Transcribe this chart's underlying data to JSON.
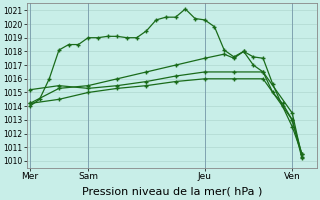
{
  "bg_color": "#c8eee8",
  "grid_color": "#b0d8d0",
  "line_color": "#1a6b1a",
  "marker_color": "#1a6b1a",
  "xlabel": "Pression niveau de la mer( hPa )",
  "xlabel_fontsize": 8,
  "ylim": [
    1009.5,
    1021.5
  ],
  "day_labels": [
    "Mer",
    "Sam",
    "Jeu",
    "Ven"
  ],
  "day_positions": [
    0,
    6,
    18,
    27
  ],
  "xlim": [
    -0.3,
    29.5
  ],
  "series1_x": [
    0,
    1,
    2,
    3,
    4,
    5,
    6,
    7,
    8,
    9,
    10,
    11,
    12,
    13,
    14,
    15,
    16,
    17,
    18,
    19,
    20,
    21,
    22,
    23,
    24,
    25,
    26,
    27,
    28
  ],
  "series1_y": [
    1014.0,
    1014.5,
    1016.0,
    1018.1,
    1018.5,
    1018.5,
    1019.0,
    1019.0,
    1019.1,
    1019.1,
    1019.0,
    1019.0,
    1019.5,
    1020.3,
    1020.5,
    1020.5,
    1021.1,
    1020.4,
    1020.3,
    1019.8,
    1018.1,
    1017.6,
    1018.0,
    1017.6,
    1017.5,
    1015.6,
    1014.0,
    1012.5,
    1010.5
  ],
  "series2_x": [
    0,
    3,
    6,
    9,
    12,
    15,
    18,
    20,
    21,
    22,
    23,
    24,
    25,
    26,
    27,
    28
  ],
  "series2_y": [
    1014.2,
    1015.3,
    1015.5,
    1016.0,
    1016.5,
    1017.0,
    1017.5,
    1017.8,
    1017.5,
    1018.0,
    1017.0,
    1016.5,
    1015.0,
    1014.2,
    1013.0,
    1010.5
  ],
  "series3_x": [
    0,
    3,
    6,
    9,
    12,
    15,
    18,
    21,
    24,
    27,
    28
  ],
  "series3_y": [
    1015.2,
    1015.5,
    1015.3,
    1015.5,
    1015.8,
    1016.2,
    1016.5,
    1016.5,
    1016.5,
    1013.5,
    1010.3
  ],
  "series4_x": [
    0,
    3,
    6,
    9,
    12,
    15,
    18,
    21,
    24,
    27,
    28
  ],
  "series4_y": [
    1014.2,
    1014.5,
    1015.0,
    1015.3,
    1015.5,
    1015.8,
    1016.0,
    1016.0,
    1016.0,
    1013.0,
    1010.2
  ]
}
